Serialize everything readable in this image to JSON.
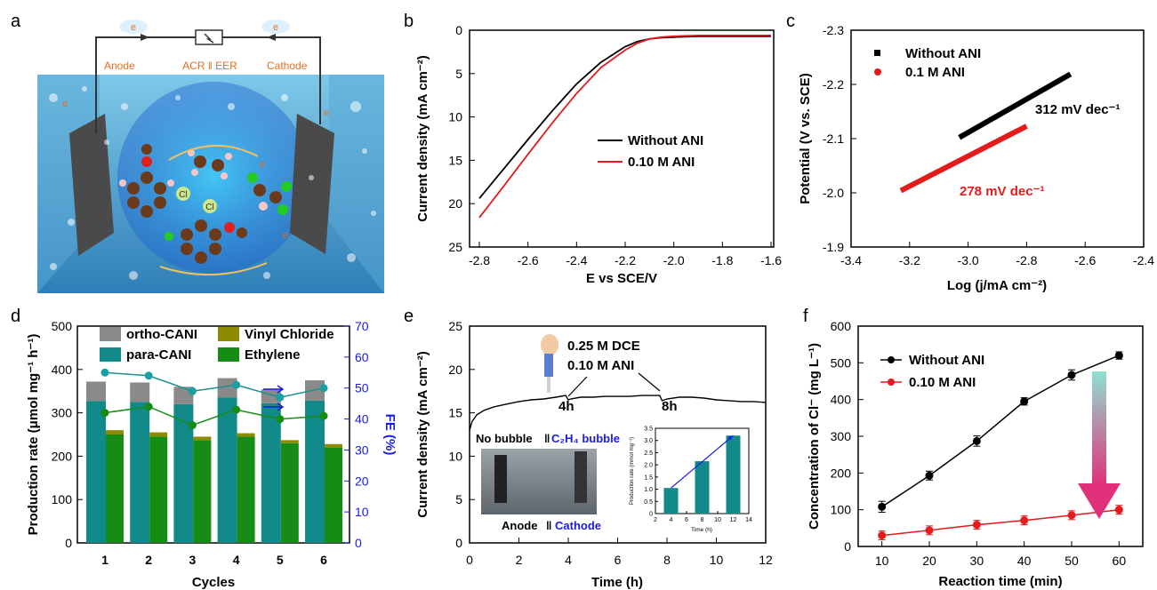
{
  "panels": {
    "a": {
      "label": "a",
      "circuit": {
        "e_left": "e",
        "e_right": "e",
        "left": "Anode",
        "center": "ACR ‖ EER",
        "right": "Cathode"
      },
      "electrons": [
        "e",
        "e",
        "e",
        "e"
      ],
      "cl_labels": [
        "Cl",
        "Cl"
      ]
    },
    "b": {
      "label": "b"
    },
    "c": {
      "label": "c"
    },
    "d": {
      "label": "d"
    },
    "e": {
      "label": "e",
      "ann_dce": "0.25 M DCE",
      "ann_ani": "0.10 M ANI",
      "ann_4h": "4h",
      "ann_8h": "8h",
      "photo_top_left": "No bubble",
      "photo_top_right": "C₂H₄ bubble",
      "photo_bottom_left": "Anode",
      "photo_bottom_right": "Cathode"
    },
    "f": {
      "label": "f"
    }
  },
  "colors": {
    "black": "#000000",
    "red": "#e41a1c",
    "teal": "#138a8a",
    "green": "#168c16",
    "olive": "#8c8c00",
    "gray": "#8a8a8a",
    "blue": "#1a1ae6",
    "tealLine": "#1a9090",
    "tealDot": "#1aa0a0"
  },
  "chart_data": [
    {
      "id": "b",
      "type": "line",
      "xlabel": "E vs SCE/V",
      "ylabel": "Current density (mA cm⁻²)",
      "xlim": [
        -2.8,
        -1.6
      ],
      "ylim": [
        0,
        25
      ],
      "y_inverted": true,
      "xticks": [
        "-2.8",
        "-2.6",
        "-2.4",
        "-2.2",
        "-2.0",
        "-1.8",
        "-1.6"
      ],
      "yticks": [
        "0",
        "5",
        "10",
        "15",
        "20",
        "25"
      ],
      "legend": [
        "Without ANI",
        "0.10 M ANI"
      ],
      "series": [
        {
          "name": "Without ANI",
          "color": "black",
          "x": [
            -2.8,
            -2.7,
            -2.6,
            -2.5,
            -2.4,
            -2.3,
            -2.2,
            -2.15,
            -2.1,
            -2.05,
            -2.0,
            -1.95,
            -1.9,
            -1.8,
            -1.7,
            -1.6
          ],
          "y": [
            19.4,
            16.0,
            12.6,
            9.3,
            6.2,
            3.7,
            1.9,
            1.3,
            1.0,
            0.85,
            0.8,
            0.75,
            0.7,
            0.7,
            0.7,
            0.7
          ]
        },
        {
          "name": "0.10 M ANI",
          "color": "red",
          "x": [
            -2.8,
            -2.7,
            -2.6,
            -2.5,
            -2.4,
            -2.3,
            -2.2,
            -2.15,
            -2.1,
            -2.05,
            -2.0,
            -1.95,
            -1.9,
            -1.8,
            -1.7,
            -1.6
          ],
          "y": [
            21.6,
            18.0,
            14.3,
            10.7,
            7.3,
            4.3,
            2.3,
            1.5,
            1.0,
            0.8,
            0.7,
            0.65,
            0.6,
            0.6,
            0.6,
            0.6
          ]
        }
      ]
    },
    {
      "id": "c",
      "type": "line",
      "xlabel": "Log (j/mA cm⁻²)",
      "ylabel": "Potential (V vs. SCE)",
      "xlim": [
        -3.4,
        -2.4
      ],
      "ylim": [
        -1.9,
        -2.3
      ],
      "y_inverted": true,
      "xticks": [
        "-3.4",
        "-3.2",
        "-3.0",
        "-2.8",
        "-2.6",
        "-2.4"
      ],
      "yticks": [
        "-2.3",
        "-2.2",
        "-2.1",
        "-2.0",
        "-1.9"
      ],
      "legend": [
        "Without ANI",
        "0.1 M ANI"
      ],
      "annotations": [
        "312 mV dec⁻¹",
        "278 mV dec⁻¹"
      ],
      "series": [
        {
          "name": "Without ANI",
          "color": "black",
          "x": [
            -3.03,
            -2.65
          ],
          "y": [
            -2.102,
            -2.219
          ]
        },
        {
          "name": "0.1 M ANI",
          "color": "red",
          "x": [
            -3.23,
            -2.8
          ],
          "y": [
            -2.004,
            -2.123
          ]
        }
      ]
    },
    {
      "id": "d",
      "type": "bar",
      "xlabel": "Cycles",
      "ylabel": "Production rate (μmol mg⁻¹ h⁻¹)",
      "y2label": "FE (%)",
      "categories": [
        "1",
        "2",
        "3",
        "4",
        "5",
        "6"
      ],
      "ylim": [
        0,
        500
      ],
      "y2lim": [
        0,
        70
      ],
      "yticks": [
        "0",
        "100",
        "200",
        "300",
        "400",
        "500"
      ],
      "y2ticks": [
        "0",
        "10",
        "20",
        "30",
        "40",
        "50",
        "60",
        "70"
      ],
      "legend": [
        "ortho-CANI",
        "para-CANI",
        "Vinyl Chloride",
        "Ethylene"
      ],
      "para_CANI": [
        327,
        325,
        320,
        335,
        322,
        328
      ],
      "ortho_CANI": [
        45,
        45,
        40,
        45,
        32,
        47
      ],
      "ethylene": [
        250,
        245,
        237,
        245,
        230,
        220
      ],
      "vinyl_chloride": [
        10,
        10,
        8,
        8,
        7,
        8
      ],
      "fe_ani": [
        55,
        54,
        49,
        51,
        47,
        50
      ],
      "fe_eth": [
        42,
        44,
        38,
        43,
        40,
        41
      ]
    },
    {
      "id": "e",
      "type": "line",
      "xlabel": "Time (h)",
      "ylabel": "Current density (mA cm⁻²)",
      "xlim": [
        0,
        12
      ],
      "ylim": [
        0,
        25
      ],
      "xticks": [
        "0",
        "2",
        "4",
        "6",
        "8",
        "10",
        "12"
      ],
      "yticks": [
        "0",
        "5",
        "10",
        "15",
        "20",
        "25"
      ],
      "series": [
        {
          "name": "",
          "color": "black",
          "x": [
            0,
            0.1,
            0.3,
            0.6,
            1.0,
            1.5,
            2.0,
            2.5,
            3.0,
            3.5,
            3.9,
            4.0,
            4.1,
            4.5,
            5.0,
            5.5,
            6.0,
            6.5,
            7.0,
            7.5,
            7.7,
            7.8,
            8.0,
            8.5,
            9.0,
            9.5,
            10.0,
            10.5,
            11.0,
            11.5,
            12.0
          ],
          "y": [
            13.0,
            14.0,
            14.8,
            15.3,
            15.7,
            16.0,
            16.3,
            16.5,
            16.6,
            16.8,
            17.0,
            16.5,
            16.6,
            16.8,
            16.8,
            16.9,
            16.9,
            16.9,
            17.0,
            17.0,
            17.0,
            16.4,
            16.6,
            16.8,
            16.8,
            16.7,
            16.5,
            16.4,
            16.3,
            16.3,
            16.2
          ]
        }
      ],
      "inset": {
        "type": "bar",
        "xlabel": "Time (h)",
        "ylabel": "Production rate (mmol mg⁻¹)",
        "xlim": [
          2,
          14
        ],
        "ylim": [
          0,
          3.5
        ],
        "xticks": [
          "2",
          "4",
          "6",
          "8",
          "10",
          "12",
          "14"
        ],
        "yticks": [
          "0",
          "0.5",
          "1.0",
          "1.5",
          "2.0",
          "2.5",
          "3.0",
          "3.5"
        ],
        "x": [
          4,
          8,
          12
        ],
        "values": [
          1.05,
          2.15,
          3.2
        ]
      }
    },
    {
      "id": "f",
      "type": "line",
      "xlabel": "Reaction time (min)",
      "ylabel": "Concentration of Cl⁻ (mg L⁻¹)",
      "xlim": [
        5,
        65
      ],
      "ylim": [
        0,
        600
      ],
      "xticks": [
        "10",
        "20",
        "30",
        "40",
        "50",
        "60"
      ],
      "yticks": [
        "0",
        "100",
        "200",
        "300",
        "400",
        "500",
        "600"
      ],
      "legend": [
        "Without ANI",
        "0.10 M ANI"
      ],
      "series": [
        {
          "name": "Without ANI",
          "color": "black",
          "x": [
            10,
            20,
            30,
            40,
            50,
            60
          ],
          "y": [
            108,
            193,
            287,
            395,
            467,
            520
          ],
          "err": [
            15,
            12,
            14,
            10,
            14,
            10
          ]
        },
        {
          "name": "0.10 M ANI",
          "color": "red",
          "x": [
            10,
            20,
            30,
            40,
            50,
            60
          ],
          "y": [
            30,
            44,
            59,
            71,
            85,
            100
          ],
          "err": [
            12,
            12,
            12,
            12,
            12,
            12
          ]
        }
      ]
    }
  ]
}
